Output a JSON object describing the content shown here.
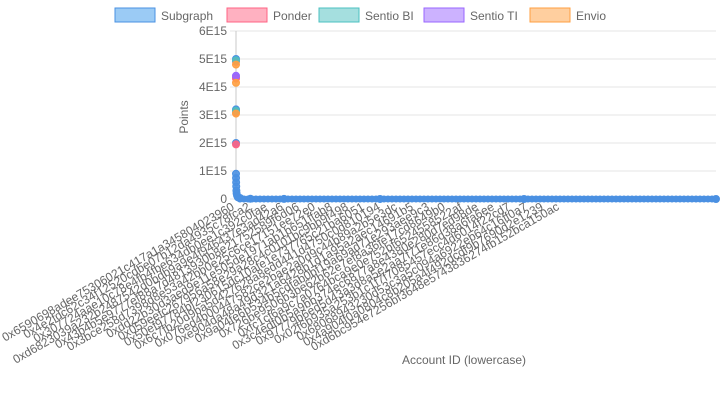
{
  "chart_data": {
    "type": "scatter",
    "xlabel": "Account ID (lowercase)",
    "ylabel": "Points",
    "ylim": [
      0,
      6000000000000000.0
    ],
    "y_ticks": [
      "0",
      "1E15",
      "2E15",
      "3E15",
      "4E15",
      "5E15",
      "6E15"
    ],
    "x_tick_labels": [
      "0x6590698adee75306021c417a1a345804023960",
      "0x4e2fdc62c34f12520cdbe07b12da4935c78fca2",
      "0x307724aae10c78e4fb4fbe634db0ee1c392c0fae",
      "0xd6823039a232b2487542d0bdb9a9e4f946437e3ad42a6",
      "0x43b4b5e9777ef88a7d4813930b8e21752589f6d06",
      "0x3bce258d7398d8e53a42bb0e25c6ce17151ee72e0",
      "0xdd22b30d3aed9e11e505de1971ab1b651ffab8",
      "0x059eefc267956a58e29a28c4c0101bc9bb9f498",
      "0x50ef97784bf230615dc10afe1e737765c21ba6051",
      "0x6c7fb20d9ba5d427628a8edd441d4750c0d810194",
      "0x076ed4b00447582ce2bae2a0d9c44b89a2b5e3dc",
      "0xe904da48a49d321a6428b1d1a95a2aec14691b5",
      "0x9a04fe6b534b5cdfab0bf19a69ad71e293aee9c3",
      "0x726be9506b3be62b62e7ef8a36fe17cd8649b0",
      "0xfc1cf6a9c7a0764bca9e0e752bf6524558522af",
      "0x3c4edf0b5a9bb374ec6877a8e4380e280d7ed98de",
      "0x97779b6ed5d43a3d8a5e2aa7f71e86d38a6fa6ee",
      "0x02f6b935a253b1c1f7f7085457ecc4d6014f22cd7",
      "0x68068943230d53c3a5c094a6922eb64c16ff0a7",
      "0x4a904f0a0804c8b205a4f492dcdf9b7690d2e1239",
      "0xd6bc954e7256bf3648e5743836274fb152bca150ac"
    ],
    "x_count": 20000,
    "series": [
      {
        "name": "Subgraph",
        "color": "#4a90e2",
        "fill": "#9bcbf5",
        "x": [
          0,
          0,
          0,
          0,
          0,
          2,
          6,
          10,
          16,
          25,
          45,
          80,
          180,
          600,
          2000,
          6000,
          12000,
          19999
        ],
        "values": [
          5000000000000000.0,
          4350000000000000.0,
          3200000000000000.0,
          2000000000000000.0,
          900000000000000.0,
          750000000000000.0,
          600000000000000.0,
          450000000000000.0,
          300000000000000.0,
          200000000000000.0,
          120000000000000.0,
          60000000000000.0,
          30000000000000.0,
          10000000000000.0,
          3000000000000.0,
          1000000000000.0,
          500000000000.0,
          0
        ]
      },
      {
        "name": "Ponder",
        "color": "#ff6384",
        "fill": "#ffb1c1",
        "x": [
          0,
          0,
          0,
          0
        ],
        "values": [
          4900000000000000.0,
          4300000000000000.0,
          3100000000000000.0,
          1950000000000000.0
        ]
      },
      {
        "name": "Sentio BI",
        "color": "#4bc0c0",
        "fill": "#a5dfdf",
        "x": [
          0,
          0
        ],
        "values": [
          4950000000000000.0,
          3150000000000000.0
        ]
      },
      {
        "name": "Sentio TI",
        "color": "#9966ff",
        "fill": "#ccb2ff",
        "x": [
          0
        ],
        "values": [
          4400000000000000.0
        ]
      },
      {
        "name": "Envio",
        "color": "#ff9f40",
        "fill": "#ffcf9f",
        "x": [
          0,
          0,
          0
        ],
        "values": [
          4800000000000000.0,
          4150000000000000.0,
          3050000000000000.0
        ]
      }
    ],
    "legend_position": "top",
    "grid": true
  }
}
